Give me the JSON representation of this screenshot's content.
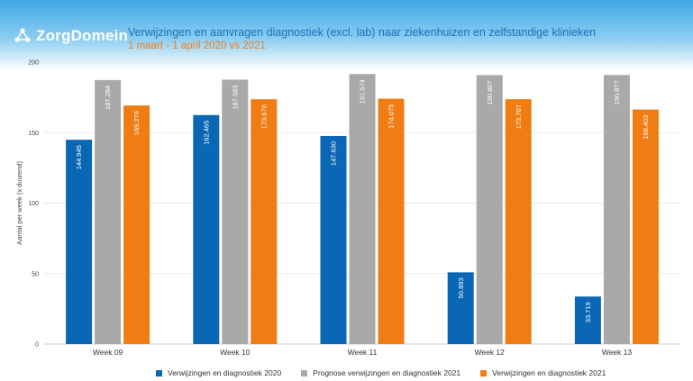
{
  "header": {
    "logo_text": "ZorgDomein",
    "title": "Verwijzingen en aanvragen diagnostiek (excl. lab) naar ziekenhuizen en zelfstandige klinieken",
    "subtitle": "1 maart - 1 april 2020 vs 2021"
  },
  "colors": {
    "series_2020": "#0a67b5",
    "series_prognose": "#a9a9a9",
    "series_2021": "#f07d14",
    "title": "#1d6fb8",
    "subtitle": "#f07d1a"
  },
  "chart_data": {
    "type": "bar",
    "title": "Verwijzingen en aanvragen diagnostiek (excl. lab) naar ziekenhuizen en zelfstandige klinieken",
    "subtitle": "1 maart - 1 april 2020 vs 2021",
    "ylabel": "Aantal per week (x duizend)",
    "xlabel": "",
    "ylim": [
      0,
      200
    ],
    "yticks": [
      0,
      50,
      100,
      150,
      200
    ],
    "grid": true,
    "legend_position": "bottom",
    "categories": [
      "Week 09",
      "Week 10",
      "Week 11",
      "Week 12",
      "Week 13"
    ],
    "series": [
      {
        "name": "Verwijzingen en diagnostiek 2020",
        "values": [
          144.945,
          162.465,
          147.63,
          50.893,
          33.719
        ],
        "labels": [
          "144.945",
          "162.465",
          "147.630",
          "50.893",
          "33.719"
        ]
      },
      {
        "name": "Prognose verwijzingen en diagnostiek 2021",
        "values": [
          187.284,
          187.583,
          191.574,
          190.807,
          190.877
        ],
        "labels": [
          "187.284",
          "187.583",
          "191.574",
          "190.807",
          "190.877"
        ]
      },
      {
        "name": "Verwijzingen en diagnostiek 2021",
        "values": [
          169.276,
          173.67,
          174.075,
          173.707,
          166.403
        ],
        "labels": [
          "169.276",
          "173.670",
          "174.075",
          "173.707",
          "166.403"
        ]
      }
    ]
  }
}
